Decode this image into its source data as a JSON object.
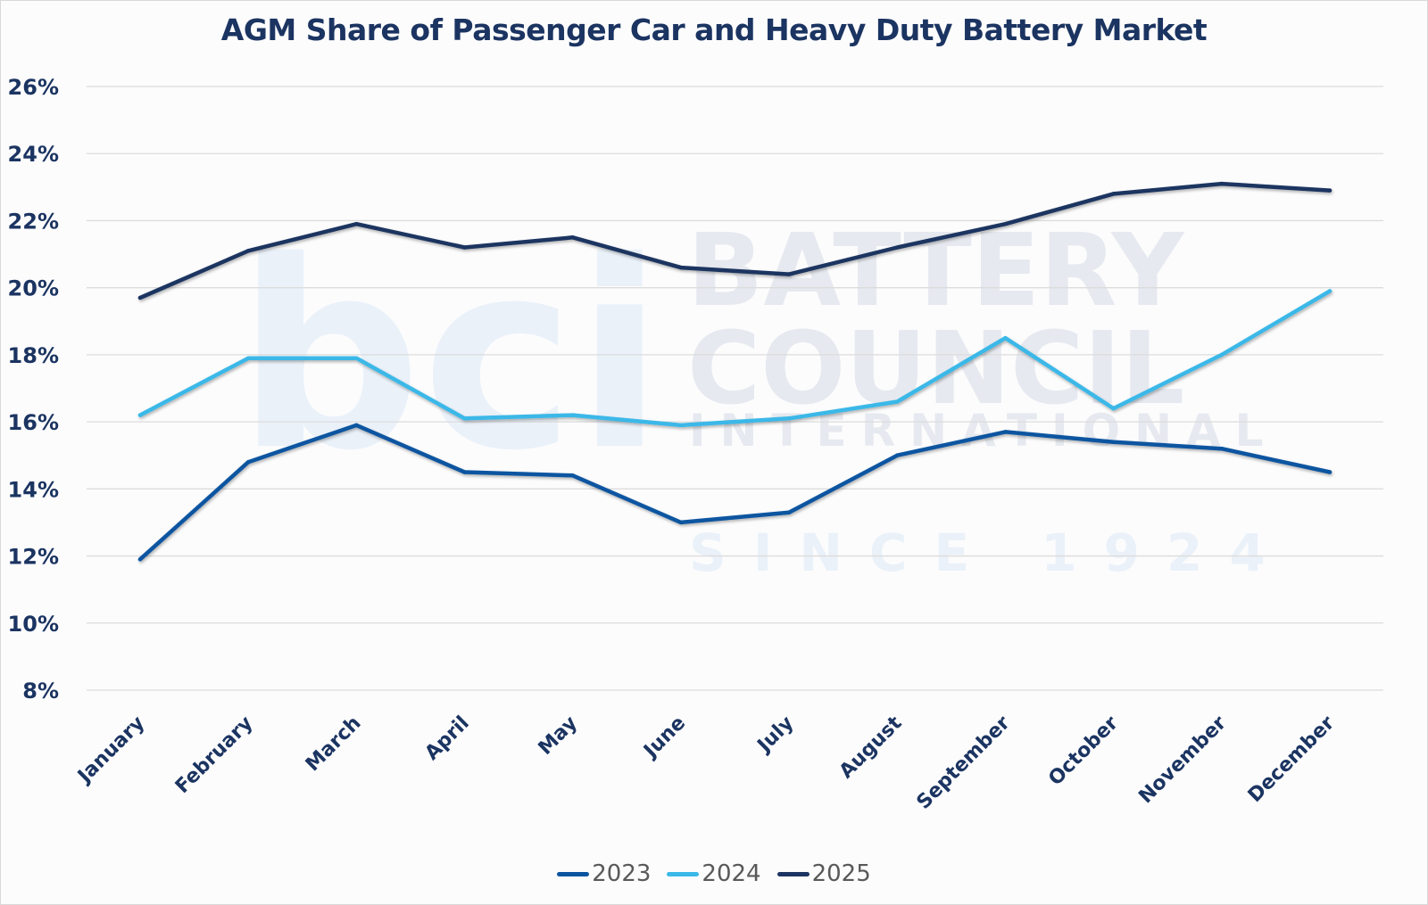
{
  "chart_data": {
    "type": "line",
    "title": "AGM Share of Passenger Car and Heavy Duty Battery Market",
    "xlabel": "",
    "ylabel": "",
    "categories": [
      "January",
      "February",
      "March",
      "April",
      "May",
      "June",
      "July",
      "August",
      "September",
      "October",
      "November",
      "December"
    ],
    "ylim": [
      8,
      26
    ],
    "yticks": [
      8,
      10,
      12,
      14,
      16,
      18,
      20,
      22,
      24,
      26
    ],
    "ytick_labels": [
      "8%",
      "10%",
      "12%",
      "14%",
      "16%",
      "18%",
      "20%",
      "22%",
      "24%",
      "26%"
    ],
    "grid": true,
    "legend_position": "bottom",
    "series": [
      {
        "name": "2023",
        "color": "#0a55a0",
        "values": [
          11.9,
          14.8,
          15.9,
          14.5,
          14.4,
          13.0,
          13.3,
          15.0,
          15.7,
          15.4,
          15.2,
          14.5
        ]
      },
      {
        "name": "2024",
        "color": "#3ab8e8",
        "values": [
          16.2,
          17.9,
          17.9,
          16.1,
          16.2,
          15.9,
          16.1,
          16.6,
          18.5,
          16.4,
          18.0,
          19.9
        ]
      },
      {
        "name": "2025",
        "color": "#1b3461",
        "values": [
          19.7,
          21.1,
          21.9,
          21.2,
          21.5,
          20.6,
          20.4,
          21.2,
          21.9,
          22.8,
          23.1,
          22.9
        ]
      }
    ]
  },
  "watermark": {
    "logo_text": "bci",
    "lines": [
      "BATTERY",
      "COUNCIL",
      "INTERNATIONAL",
      "SINCE 1924"
    ]
  }
}
